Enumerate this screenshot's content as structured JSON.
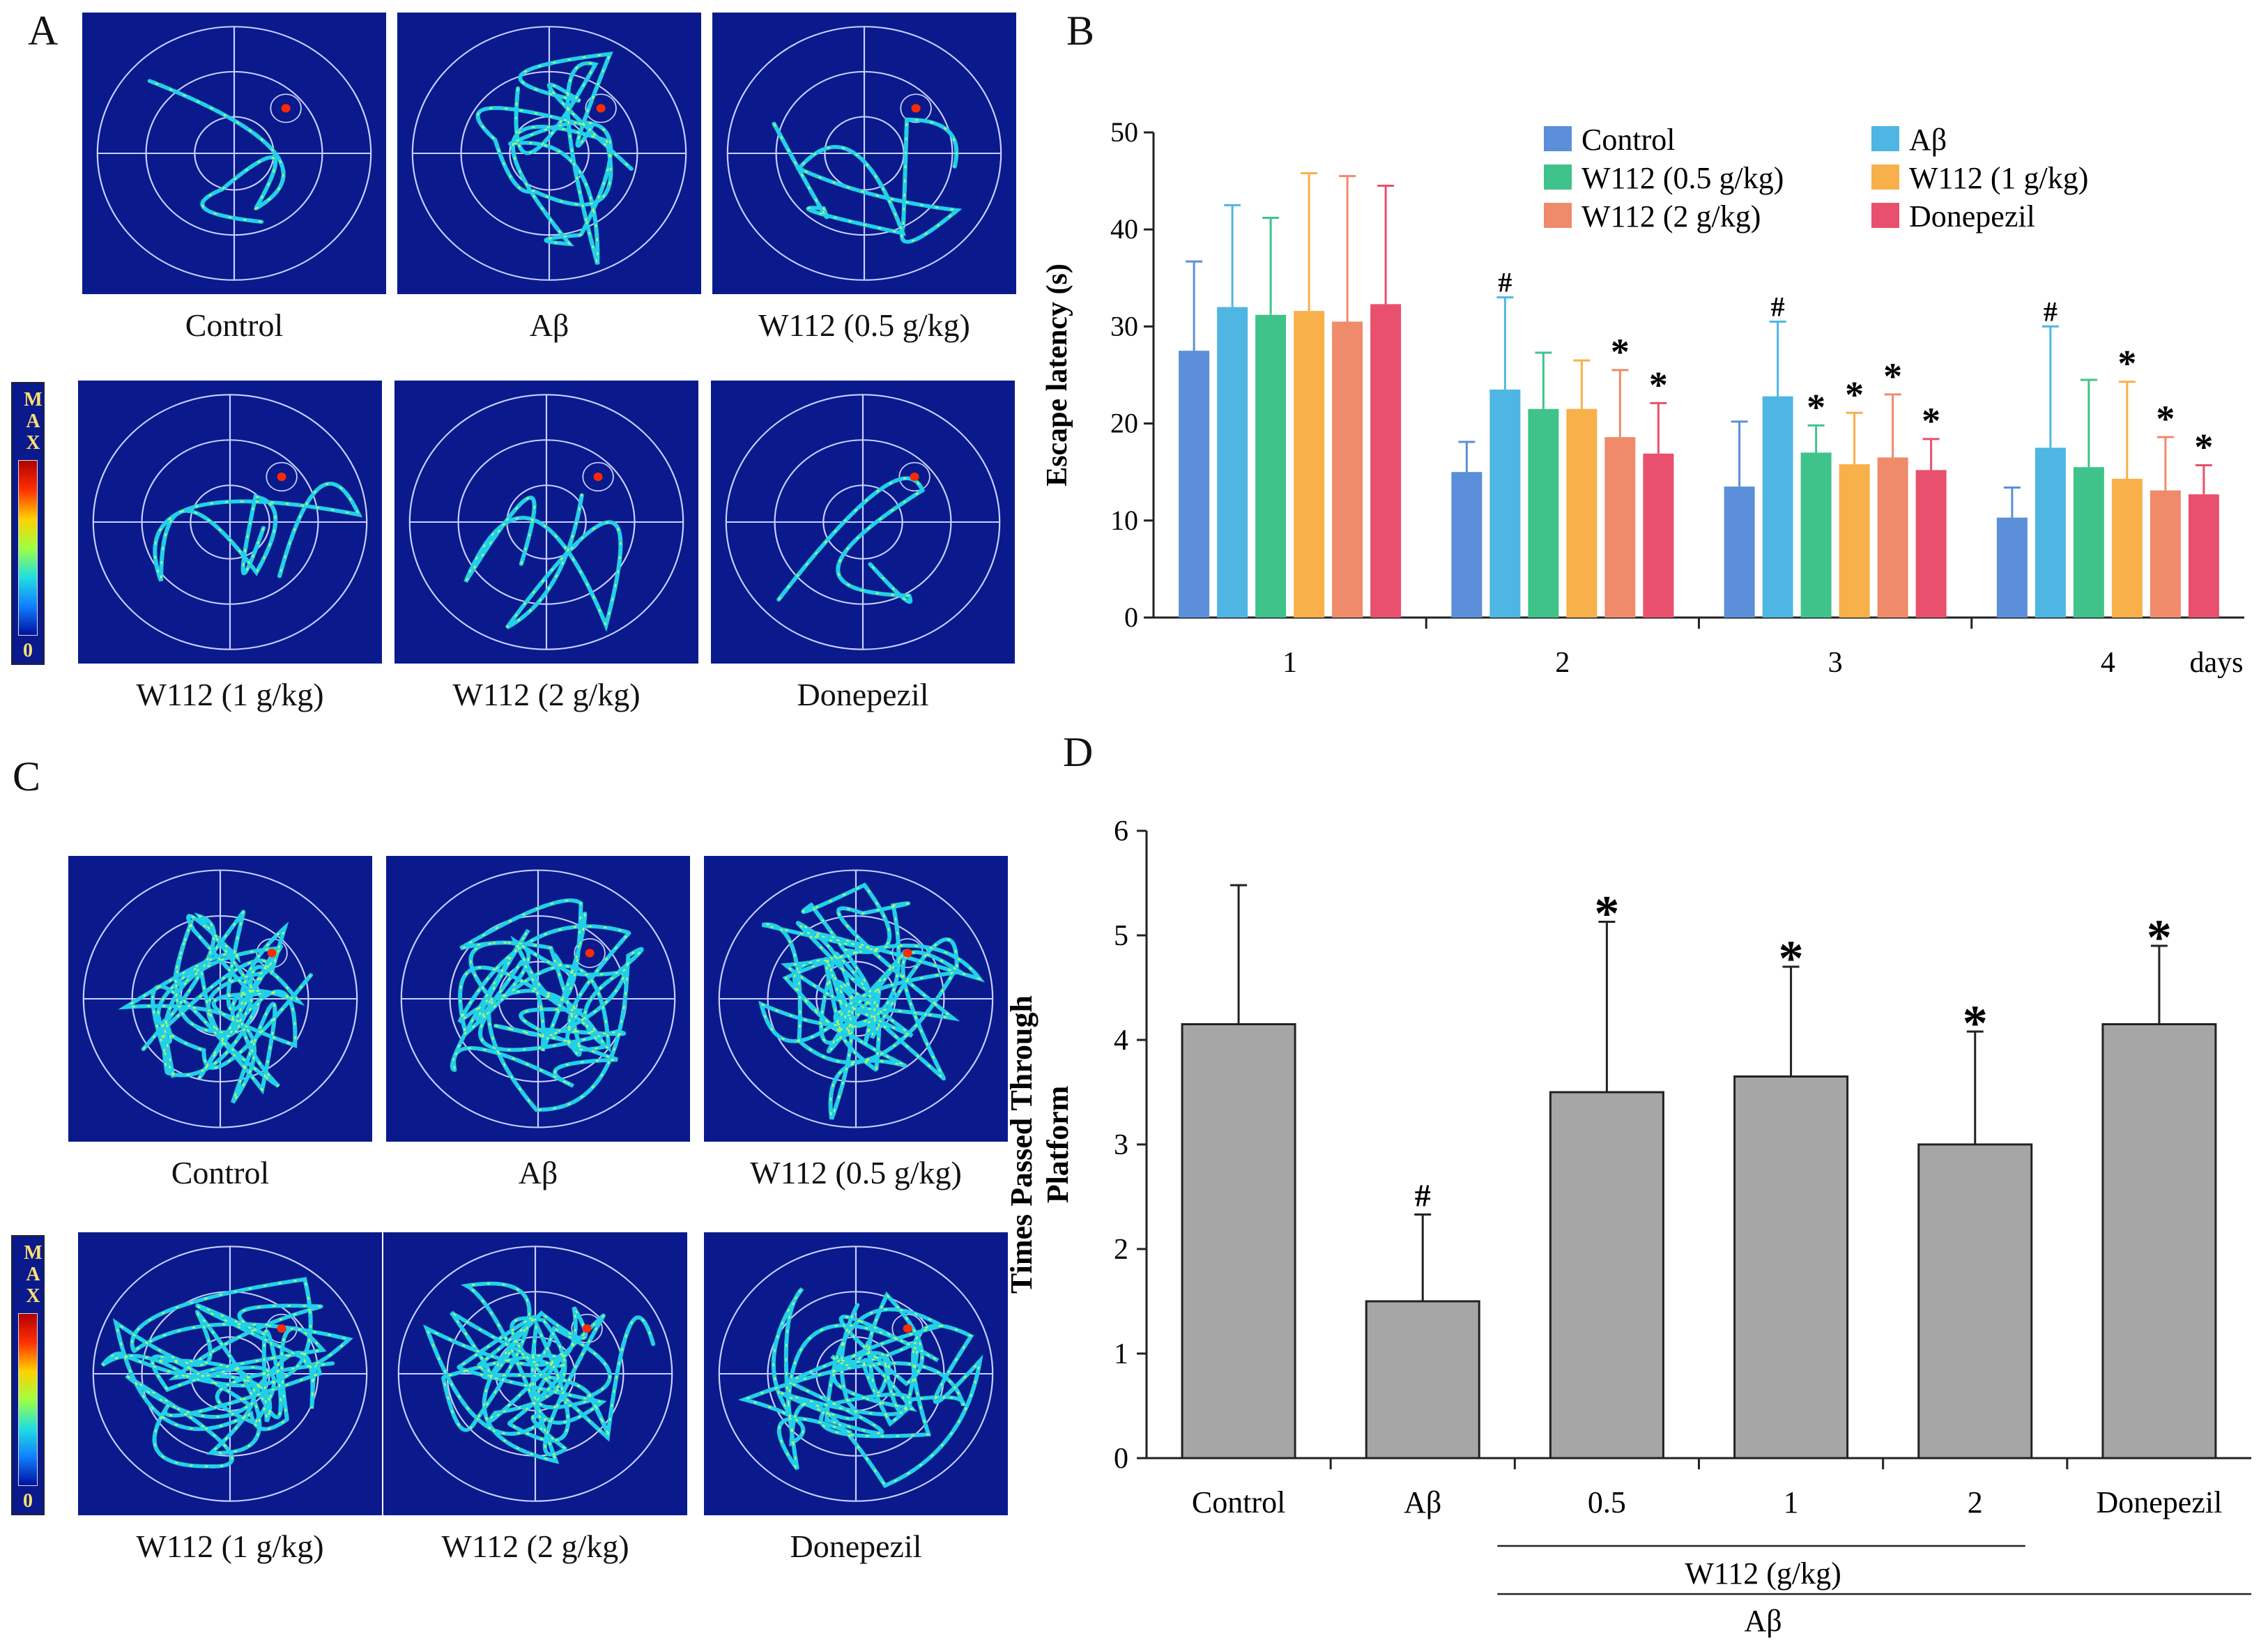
{
  "panels": {
    "A": "A",
    "B": "B",
    "C": "C",
    "D": "D"
  },
  "colorbar": {
    "max_label": "MAX",
    "min_label": "0"
  },
  "panel_A_labels": [
    "Control",
    "Aβ",
    "W112 (0.5 g/kg)",
    "W112 (1 g/kg)",
    "W112 (2 g/kg)",
    "Donepezil"
  ],
  "panel_C_labels": [
    "Control",
    "Aβ",
    "W112 (0.5 g/kg)",
    "W112 (1 g/kg)",
    "W112 (2 g/kg)",
    "Donepezil"
  ],
  "colors": {
    "tile_bg": "#0a1a8c",
    "track": "#30c8e8",
    "bar_D": "#a6a6a6",
    "series": [
      "#5b8fd9",
      "#4fb6e3",
      "#3fc38a",
      "#f8b04a",
      "#ef8a6a",
      "#e8506e"
    ]
  },
  "chart_data": [
    {
      "id": "B",
      "type": "bar",
      "ylabel": "Escape latency (s)",
      "xlabel": "days",
      "ylim": [
        0,
        50
      ],
      "yticks": [
        0,
        10,
        20,
        30,
        40,
        50
      ],
      "categories": [
        "1",
        "2",
        "3",
        "4"
      ],
      "series": [
        {
          "name": "Control",
          "values": [
            27.5,
            15,
            13.5,
            10.3
          ],
          "errors": [
            9.2,
            3.1,
            6.7,
            3.1
          ]
        },
        {
          "name": "Aβ",
          "values": [
            32,
            23.5,
            22.8,
            17.5
          ],
          "errors": [
            10.5,
            9.5,
            7.7,
            12.5
          ]
        },
        {
          "name": "W112 (0.5 g/kg)",
          "values": [
            31.2,
            21.5,
            17,
            15.5
          ],
          "errors": [
            10,
            5.8,
            2.8,
            9
          ]
        },
        {
          "name": "W112 (1 g/kg)",
          "values": [
            31.6,
            21.5,
            15.8,
            14.3
          ],
          "errors": [
            14.2,
            5,
            5.3,
            10
          ]
        },
        {
          "name": "W112 (2 g/kg)",
          "values": [
            30.5,
            18.6,
            16.5,
            13.1
          ],
          "errors": [
            15,
            6.9,
            6.5,
            5.5
          ]
        },
        {
          "name": "Donepezil",
          "values": [
            32.3,
            16.9,
            15.2,
            12.7
          ],
          "errors": [
            12.2,
            5.2,
            3.2,
            3
          ]
        }
      ],
      "annotations": [
        {
          "category": "2",
          "series": "Aβ",
          "text": "#"
        },
        {
          "category": "2",
          "series": "W112 (2 g/kg)",
          "text": "*"
        },
        {
          "category": "2",
          "series": "Donepezil",
          "text": "*"
        },
        {
          "category": "3",
          "series": "Aβ",
          "text": "#"
        },
        {
          "category": "3",
          "series": "W112 (0.5 g/kg)",
          "text": "*"
        },
        {
          "category": "3",
          "series": "W112 (1 g/kg)",
          "text": "*"
        },
        {
          "category": "3",
          "series": "W112 (2 g/kg)",
          "text": "*"
        },
        {
          "category": "3",
          "series": "Donepezil",
          "text": "*"
        },
        {
          "category": "4",
          "series": "Aβ",
          "text": "#"
        },
        {
          "category": "4",
          "series": "W112 (1 g/kg)",
          "text": "*"
        },
        {
          "category": "4",
          "series": "W112 (2 g/kg)",
          "text": "*"
        },
        {
          "category": "4",
          "series": "Donepezil",
          "text": "*"
        }
      ],
      "legend_position": "top-right"
    },
    {
      "id": "D",
      "type": "bar",
      "ylabel": "Times Passed Through Platform",
      "ylim": [
        0,
        6
      ],
      "yticks": [
        0,
        1,
        2,
        3,
        4,
        5,
        6
      ],
      "categories": [
        "Control",
        "Aβ",
        "0.5",
        "1",
        "2",
        "Donepezil"
      ],
      "values": [
        4.15,
        1.5,
        3.5,
        3.65,
        3.0,
        4.15
      ],
      "errors": [
        1.33,
        0.83,
        1.63,
        1.05,
        1.08,
        0.75
      ],
      "annotations": [
        "",
        "#",
        "*",
        "*",
        "*",
        "*"
      ],
      "group_labels": {
        "w112": "W112  (g/kg)",
        "abeta": "Aβ"
      }
    }
  ]
}
